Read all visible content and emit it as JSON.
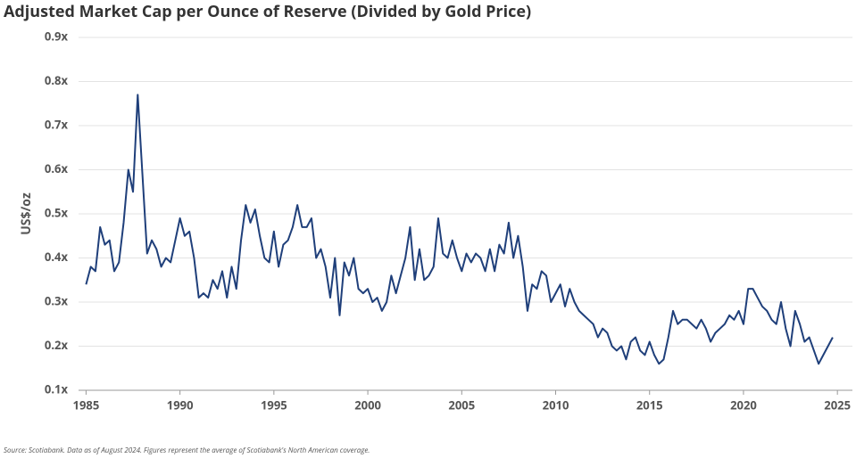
{
  "chart_data": {
    "type": "line",
    "title": "Adjusted Market Cap per Ounce of Reserve (Divided by Gold Price)",
    "y_label": "US$/oz",
    "source": "Source: Scotiabank. Data as of August 2024. Figures represent the average of Scotiabank's North American coverage.",
    "x": [
      1985,
      1985.25,
      1985.5,
      1985.75,
      1986,
      1986.25,
      1986.5,
      1986.75,
      1987,
      1987.25,
      1987.5,
      1987.75,
      1988,
      1988.25,
      1988.5,
      1988.75,
      1989,
      1989.25,
      1989.5,
      1989.75,
      1990,
      1990.25,
      1990.5,
      1990.75,
      1991,
      1991.25,
      1991.5,
      1991.75,
      1992,
      1992.25,
      1992.5,
      1992.75,
      1993,
      1993.25,
      1993.5,
      1993.75,
      1994,
      1994.25,
      1994.5,
      1994.75,
      1995,
      1995.25,
      1995.5,
      1995.75,
      1996,
      1996.25,
      1996.5,
      1996.75,
      1997,
      1997.25,
      1997.5,
      1997.75,
      1998,
      1998.25,
      1998.5,
      1998.75,
      1999,
      1999.25,
      1999.5,
      1999.75,
      2000,
      2000.25,
      2000.5,
      2000.75,
      2001,
      2001.25,
      2001.5,
      2001.75,
      2002,
      2002.25,
      2002.5,
      2002.75,
      2003,
      2003.25,
      2003.5,
      2003.75,
      2004,
      2004.25,
      2004.5,
      2004.75,
      2005,
      2005.25,
      2005.5,
      2005.75,
      2006,
      2006.25,
      2006.5,
      2006.75,
      2007,
      2007.25,
      2007.5,
      2007.75,
      2008,
      2008.25,
      2008.5,
      2008.75,
      2009,
      2009.25,
      2009.5,
      2009.75,
      2010,
      2010.25,
      2010.5,
      2010.75,
      2011,
      2011.25,
      2011.5,
      2011.75,
      2012,
      2012.25,
      2012.5,
      2012.75,
      2013,
      2013.25,
      2013.5,
      2013.75,
      2014,
      2014.25,
      2014.5,
      2014.75,
      2015,
      2015.25,
      2015.5,
      2015.75,
      2016,
      2016.25,
      2016.5,
      2016.75,
      2017,
      2017.25,
      2017.5,
      2017.75,
      2018,
      2018.25,
      2018.5,
      2018.75,
      2019,
      2019.25,
      2019.5,
      2019.75,
      2020,
      2020.25,
      2020.5,
      2020.75,
      2021,
      2021.25,
      2021.5,
      2021.75,
      2022,
      2022.25,
      2022.5,
      2022.75,
      2023,
      2023.25,
      2023.5,
      2023.75,
      2024,
      2024.25,
      2024.5,
      2024.75
    ],
    "series": [
      {
        "color": "#1f3f7a",
        "values": [
          0.34,
          0.38,
          0.37,
          0.47,
          0.43,
          0.44,
          0.37,
          0.39,
          0.48,
          0.6,
          0.55,
          0.77,
          0.59,
          0.41,
          0.44,
          0.42,
          0.38,
          0.4,
          0.39,
          0.44,
          0.49,
          0.45,
          0.46,
          0.4,
          0.31,
          0.32,
          0.31,
          0.35,
          0.33,
          0.37,
          0.31,
          0.38,
          0.33,
          0.44,
          0.52,
          0.48,
          0.51,
          0.45,
          0.4,
          0.39,
          0.46,
          0.38,
          0.43,
          0.44,
          0.47,
          0.52,
          0.47,
          0.47,
          0.49,
          0.4,
          0.42,
          0.38,
          0.31,
          0.4,
          0.27,
          0.39,
          0.36,
          0.4,
          0.33,
          0.32,
          0.33,
          0.3,
          0.31,
          0.28,
          0.3,
          0.36,
          0.32,
          0.36,
          0.4,
          0.47,
          0.35,
          0.42,
          0.35,
          0.36,
          0.38,
          0.49,
          0.41,
          0.4,
          0.44,
          0.4,
          0.37,
          0.41,
          0.39,
          0.41,
          0.4,
          0.37,
          0.42,
          0.37,
          0.43,
          0.41,
          0.48,
          0.4,
          0.45,
          0.38,
          0.28,
          0.34,
          0.33,
          0.37,
          0.36,
          0.3,
          0.32,
          0.34,
          0.29,
          0.33,
          0.3,
          0.28,
          0.27,
          0.26,
          0.25,
          0.22,
          0.24,
          0.23,
          0.2,
          0.19,
          0.2,
          0.17,
          0.21,
          0.22,
          0.19,
          0.18,
          0.21,
          0.18,
          0.16,
          0.17,
          0.22,
          0.28,
          0.25,
          0.26,
          0.26,
          0.25,
          0.24,
          0.26,
          0.24,
          0.21,
          0.23,
          0.24,
          0.25,
          0.27,
          0.26,
          0.28,
          0.25,
          0.33,
          0.33,
          0.31,
          0.29,
          0.28,
          0.26,
          0.25,
          0.3,
          0.24,
          0.2,
          0.28,
          0.25,
          0.21,
          0.22,
          0.19,
          0.16,
          0.18,
          0.2,
          0.22
        ]
      }
    ],
    "xlim": [
      1984.6,
      2025.8
    ],
    "xticks": [
      1985,
      1990,
      1995,
      2000,
      2005,
      2010,
      2015,
      2020,
      2025
    ],
    "ylim": [
      0.1,
      0.9
    ],
    "yticks": [
      {
        "value": 0.1,
        "label": "0.1x"
      },
      {
        "value": 0.2,
        "label": "0.2x"
      },
      {
        "value": 0.3,
        "label": "0.3x"
      },
      {
        "value": 0.4,
        "label": "0.4x"
      },
      {
        "value": 0.5,
        "label": "0.5x"
      },
      {
        "value": 0.6,
        "label": "0.6x"
      },
      {
        "value": 0.7,
        "label": "0.7x"
      },
      {
        "value": 0.8,
        "label": "0.8x"
      },
      {
        "value": 0.9,
        "label": "0.9x"
      }
    ],
    "grid": true
  }
}
